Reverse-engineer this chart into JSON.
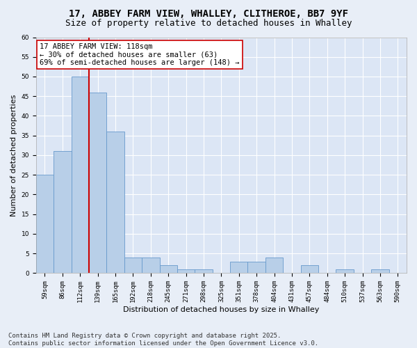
{
  "title_line1": "17, ABBEY FARM VIEW, WHALLEY, CLITHEROE, BB7 9YF",
  "title_line2": "Size of property relative to detached houses in Whalley",
  "xlabel": "Distribution of detached houses by size in Whalley",
  "ylabel": "Number of detached properties",
  "categories": [
    "59sqm",
    "86sqm",
    "112sqm",
    "139sqm",
    "165sqm",
    "192sqm",
    "218sqm",
    "245sqm",
    "271sqm",
    "298sqm",
    "325sqm",
    "351sqm",
    "378sqm",
    "404sqm",
    "431sqm",
    "457sqm",
    "484sqm",
    "510sqm",
    "537sqm",
    "563sqm",
    "590sqm"
  ],
  "values": [
    25,
    31,
    50,
    46,
    36,
    4,
    4,
    2,
    1,
    1,
    0,
    3,
    3,
    4,
    0,
    2,
    0,
    1,
    0,
    1,
    0
  ],
  "bar_color": "#b8cfe8",
  "bar_edge_color": "#6699cc",
  "vline_x": 2.5,
  "vline_color": "#cc0000",
  "annotation_text": "17 ABBEY FARM VIEW: 118sqm\n← 30% of detached houses are smaller (63)\n69% of semi-detached houses are larger (148) →",
  "annotation_box_color": "#ffffff",
  "annotation_box_edge": "#cc0000",
  "ylim": [
    0,
    60
  ],
  "yticks": [
    0,
    5,
    10,
    15,
    20,
    25,
    30,
    35,
    40,
    45,
    50,
    55,
    60
  ],
  "footer": "Contains HM Land Registry data © Crown copyright and database right 2025.\nContains public sector information licensed under the Open Government Licence v3.0.",
  "background_color": "#e8eef7",
  "plot_background_color": "#dce6f5",
  "grid_color": "#ffffff",
  "title_fontsize": 10,
  "subtitle_fontsize": 9,
  "axis_label_fontsize": 8,
  "tick_fontsize": 6.5,
  "annotation_fontsize": 7.5,
  "footer_fontsize": 6.5
}
